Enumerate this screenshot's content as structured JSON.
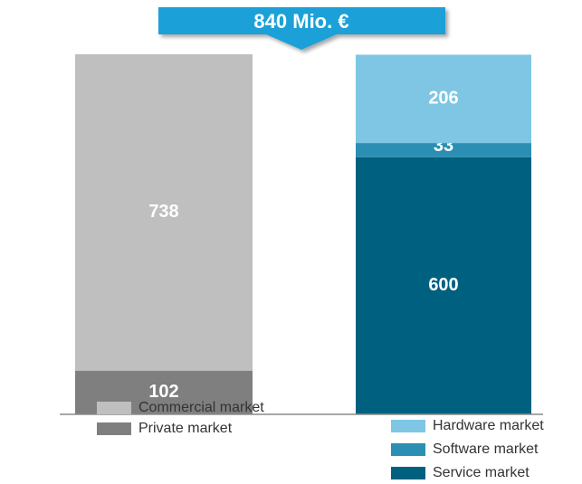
{
  "chart_data": {
    "type": "stacked_bar",
    "title": "840 Mio. €",
    "categories": [
      null,
      null
    ],
    "series": [
      {
        "name": "Private market",
        "color": "#7f7f7f",
        "values": [
          102,
          null
        ]
      },
      {
        "name": "Commercial market",
        "color": "#bfbfbf",
        "values": [
          738,
          null
        ]
      },
      {
        "name": "Service market",
        "color": "#00607f",
        "values": [
          null,
          600
        ]
      },
      {
        "name": "Software market",
        "color": "#2b8fb3",
        "values": [
          null,
          33
        ]
      },
      {
        "name": "Hardware market",
        "color": "#7ec6e3",
        "values": [
          null,
          206
        ]
      }
    ]
  }
}
